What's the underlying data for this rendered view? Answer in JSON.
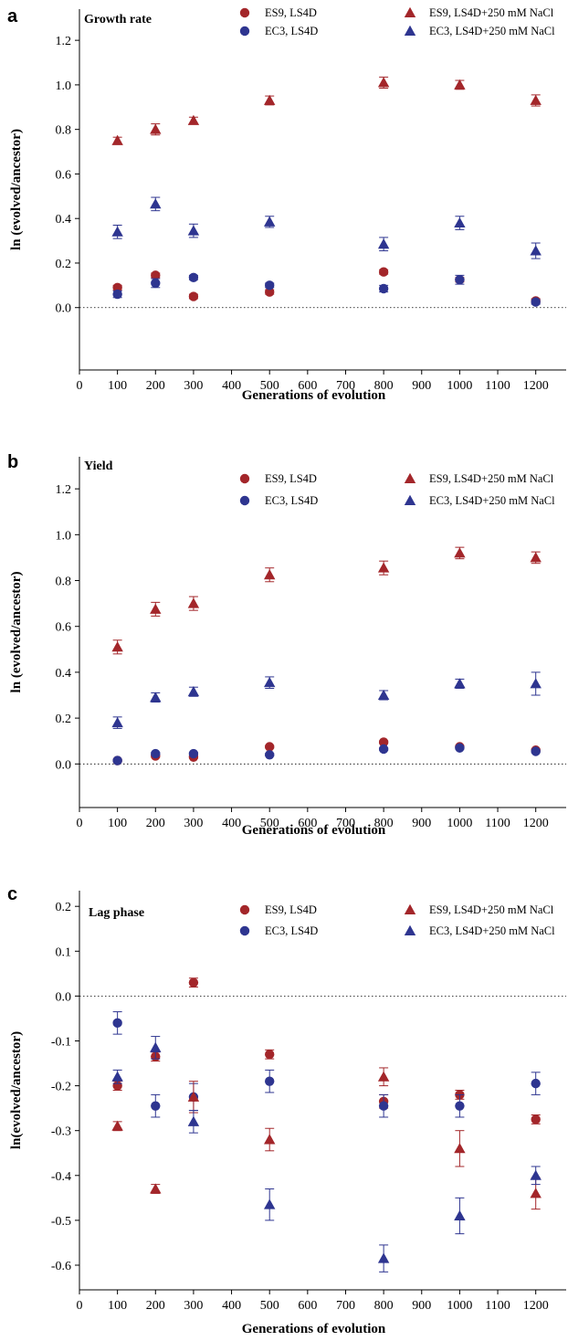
{
  "colors": {
    "red": "#a3262a",
    "blue": "#2e3590"
  },
  "series_styles": [
    {
      "marker": "circle",
      "color": "red"
    },
    {
      "marker": "circle",
      "color": "blue"
    },
    {
      "marker": "triangle",
      "color": "red"
    },
    {
      "marker": "triangle",
      "color": "blue"
    }
  ],
  "chart_data": [
    {
      "type": "scatter",
      "panel_label": "a",
      "title": "Growth rate",
      "xlabel": "Generations of evolution",
      "ylabel": "ln (evolved/ancestor)",
      "xlim": [
        0,
        1280
      ],
      "ylim": [
        -0.28,
        1.34
      ],
      "x_ticks": [
        0,
        100,
        200,
        300,
        400,
        500,
        600,
        700,
        800,
        900,
        1000,
        1100,
        1200
      ],
      "y_ticks": [
        0.0,
        0.2,
        0.4,
        0.6,
        0.8,
        1.0,
        1.2
      ],
      "y_tick_labels": [
        "0.0",
        "0.2",
        "0.4",
        "0.6",
        "0.8",
        "1.0",
        "1.2"
      ],
      "reference_line": 0,
      "legend": [
        "ES9, LS4D",
        "EC3, LS4D",
        "ES9, LS4D+250 mM NaCl",
        "EC3, LS4D+250 mM NaCl"
      ],
      "series": [
        {
          "name": "ES9, LS4D",
          "x": [
            100,
            200,
            300,
            500,
            800,
            1000,
            1200
          ],
          "y": [
            0.09,
            0.145,
            0.05,
            0.07,
            0.16,
            0.125,
            0.03
          ],
          "err": [
            0.01,
            0.01,
            0.01,
            0.01,
            0.01,
            0.01,
            0.01
          ]
        },
        {
          "name": "EC3, LS4D",
          "x": [
            100,
            200,
            300,
            500,
            800,
            1000,
            1200
          ],
          "y": [
            0.06,
            0.11,
            0.135,
            0.1,
            0.085,
            0.125,
            0.025
          ],
          "err": [
            0.015,
            0.02,
            0.01,
            0.01,
            0.015,
            0.02,
            0.01
          ]
        },
        {
          "name": "ES9, LS4D+250 mM NaCl",
          "x": [
            100,
            200,
            300,
            500,
            800,
            1000,
            1200
          ],
          "y": [
            0.75,
            0.8,
            0.84,
            0.93,
            1.01,
            1.0,
            0.93
          ],
          "err": [
            0.015,
            0.025,
            0.015,
            0.02,
            0.025,
            0.02,
            0.025
          ]
        },
        {
          "name": "EC3, LS4D+250 mM NaCl",
          "x": [
            100,
            200,
            300,
            500,
            800,
            1000,
            1200
          ],
          "y": [
            0.34,
            0.465,
            0.345,
            0.385,
            0.285,
            0.38,
            0.255
          ],
          "err": [
            0.03,
            0.03,
            0.03,
            0.025,
            0.03,
            0.03,
            0.035
          ]
        }
      ]
    },
    {
      "type": "scatter",
      "panel_label": "b",
      "title": "Yield",
      "xlabel": "Generations of evolution",
      "ylabel": "ln (evolved/ancestor)",
      "xlim": [
        0,
        1280
      ],
      "ylim": [
        -0.19,
        1.34
      ],
      "x_ticks": [
        0,
        100,
        200,
        300,
        400,
        500,
        600,
        700,
        800,
        900,
        1000,
        1100,
        1200
      ],
      "y_ticks": [
        0.0,
        0.2,
        0.4,
        0.6,
        0.8,
        1.0,
        1.2
      ],
      "y_tick_labels": [
        "0.0",
        "0.2",
        "0.4",
        "0.6",
        "0.8",
        "1.0",
        "1.2"
      ],
      "reference_line": 0,
      "legend": [
        "ES9, LS4D",
        "EC3, LS4D",
        "ES9, LS4D+250 mM NaCl",
        "EC3, LS4D+250 mM NaCl"
      ],
      "series": [
        {
          "name": "ES9, LS4D",
          "x": [
            100,
            200,
            300,
            500,
            800,
            1000,
            1200
          ],
          "y": [
            0.015,
            0.035,
            0.03,
            0.075,
            0.095,
            0.075,
            0.06
          ],
          "err": [
            0.005,
            0.005,
            0.005,
            0.005,
            0.005,
            0.005,
            0.005
          ]
        },
        {
          "name": "EC3, LS4D",
          "x": [
            100,
            200,
            300,
            500,
            800,
            1000,
            1200
          ],
          "y": [
            0.015,
            0.045,
            0.045,
            0.04,
            0.065,
            0.07,
            0.055
          ],
          "err": [
            0.005,
            0.005,
            0.005,
            0.005,
            0.005,
            0.005,
            0.005
          ]
        },
        {
          "name": "ES9, LS4D+250 mM NaCl",
          "x": [
            100,
            200,
            300,
            500,
            800,
            1000,
            1200
          ],
          "y": [
            0.51,
            0.675,
            0.7,
            0.825,
            0.855,
            0.92,
            0.9
          ],
          "err": [
            0.03,
            0.03,
            0.03,
            0.03,
            0.03,
            0.025,
            0.025
          ]
        },
        {
          "name": "EC3, LS4D+250 mM NaCl",
          "x": [
            100,
            200,
            300,
            500,
            800,
            1000,
            1200
          ],
          "y": [
            0.18,
            0.29,
            0.315,
            0.355,
            0.3,
            0.35,
            0.35
          ],
          "err": [
            0.025,
            0.02,
            0.02,
            0.025,
            0.02,
            0.02,
            0.05
          ]
        }
      ]
    },
    {
      "type": "scatter",
      "panel_label": "c",
      "title": "Lag phase",
      "xlabel": "Generations of evolution",
      "ylabel": "ln(evolved/ancestor)",
      "xlim": [
        0,
        1280
      ],
      "ylim": [
        -0.655,
        0.235
      ],
      "x_ticks": [
        0,
        100,
        200,
        300,
        400,
        500,
        600,
        700,
        800,
        900,
        1000,
        1100,
        1200
      ],
      "y_ticks": [
        0.2,
        0.1,
        0.0,
        -0.1,
        -0.2,
        -0.3,
        -0.4,
        -0.5,
        -0.6
      ],
      "y_tick_labels": [
        "0.2",
        "0.1",
        "0.0",
        "-0.1",
        "-0.2",
        "-0.3",
        "-0.4",
        "-0.5",
        "-0.6"
      ],
      "reference_line": 0,
      "legend": [
        "ES9, LS4D",
        "EC3, LS4D",
        "ES9, LS4D+250 mM NaCl",
        "EC3, LS4D+250 mM NaCl"
      ],
      "series": [
        {
          "name": "ES9, LS4D",
          "x": [
            100,
            200,
            300,
            500,
            800,
            1000,
            1200
          ],
          "y": [
            -0.2,
            -0.135,
            0.03,
            -0.13,
            -0.235,
            -0.22,
            -0.275
          ],
          "err": [
            0.01,
            0.01,
            0.01,
            0.01,
            0.015,
            0.01,
            0.01
          ]
        },
        {
          "name": "EC3, LS4D",
          "x": [
            100,
            200,
            300,
            500,
            800,
            1000,
            1200
          ],
          "y": [
            -0.06,
            -0.245,
            -0.225,
            -0.19,
            -0.245,
            -0.245,
            -0.195
          ],
          "err": [
            0.025,
            0.025,
            0.03,
            0.025,
            0.025,
            0.025,
            0.025
          ]
        },
        {
          "name": "ES9, LS4D+250 mM NaCl",
          "x": [
            100,
            200,
            300,
            500,
            800,
            1000,
            1200
          ],
          "y": [
            -0.29,
            -0.43,
            -0.225,
            -0.32,
            -0.18,
            -0.34,
            -0.44
          ],
          "err": [
            0.01,
            0.01,
            0.035,
            0.025,
            0.02,
            0.04,
            0.035
          ]
        },
        {
          "name": "EC3, LS4D+250 mM NaCl",
          "x": [
            100,
            200,
            300,
            500,
            800,
            1000,
            1200
          ],
          "y": [
            -0.18,
            -0.115,
            -0.28,
            -0.465,
            -0.585,
            -0.49,
            -0.4
          ],
          "err": [
            0.015,
            0.025,
            0.025,
            0.035,
            0.03,
            0.04,
            0.02
          ]
        }
      ]
    }
  ]
}
